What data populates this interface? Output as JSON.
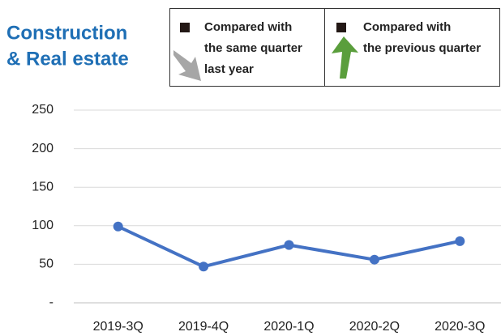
{
  "chart_data": {
    "type": "line",
    "title": [
      "Construction",
      "& Real estate"
    ],
    "legend_items": [
      {
        "lines": [
          "Compared with",
          "the same quarter",
          "last year"
        ]
      },
      {
        "lines": [
          "Compared with",
          "the previous quarter"
        ]
      }
    ],
    "categories": [
      "2019-3Q",
      "2019-4Q",
      "2020-1Q",
      "2020-2Q",
      "2020-3Q"
    ],
    "series": [
      {
        "color": "#4472c4",
        "values": [
          99,
          47,
          75,
          56,
          80
        ]
      }
    ],
    "ylim": [
      0,
      250
    ],
    "yticks": [
      {
        "value": 0,
        "label": "-"
      },
      50,
      100,
      150,
      200,
      250
    ],
    "grid": true
  }
}
